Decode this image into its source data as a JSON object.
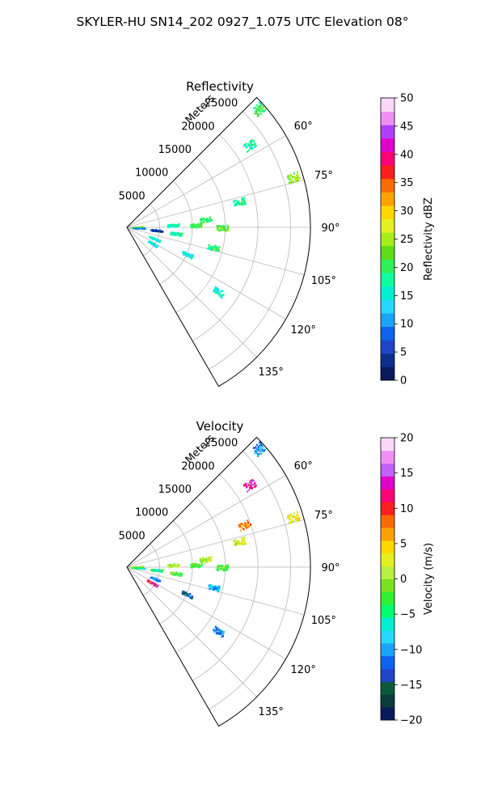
{
  "figure": {
    "title": "SKYLER-HU  SN14_202  0927_1.075 UTC Elevation 08°"
  },
  "chart_data": [
    {
      "type": "heatmap",
      "subtype": "polar-sector-radar",
      "title": "Reflectivity",
      "radial_axis_label": "Meters",
      "radial_ticks": [
        5000,
        10000,
        15000,
        20000,
        25000
      ],
      "radial_tick_labels": [
        "5000",
        "10000",
        "15000",
        "20000",
        "25000"
      ],
      "azimuth_range_deg": [
        45,
        150
      ],
      "azimuth_ticks_deg": [
        60,
        75,
        90,
        105,
        120,
        135
      ],
      "azimuth_tick_labels": [
        "60°",
        "75°",
        "90°",
        "105°",
        "120°",
        "135°"
      ],
      "max_range_m": 28000,
      "grid": true,
      "colorbar": {
        "label": "Reflectivity dBZ",
        "range": [
          0,
          50
        ],
        "ticks": [
          0,
          5,
          10,
          15,
          20,
          25,
          30,
          35,
          40,
          45,
          50
        ],
        "tick_labels": [
          "0",
          "5",
          "10",
          "15",
          "20",
          "25",
          "30",
          "35",
          "40",
          "45",
          "50"
        ],
        "colors": [
          "#0a1a5a",
          "#0d2f8a",
          "#1f44c8",
          "#0b63f0",
          "#1aa3ff",
          "#25d8ff",
          "#00f0d0",
          "#10ffa0",
          "#2ef05a",
          "#5fdc1a",
          "#a8ee18",
          "#e6f020",
          "#ffd800",
          "#ffa200",
          "#ff6a00",
          "#ff1e1e",
          "#ff0077",
          "#e000c8",
          "#b040ff",
          "#f090f5",
          "#fbd8f8"
        ]
      },
      "echoes": [
        {
          "az": 48,
          "r": 27000,
          "value": 20
        },
        {
          "az": 56,
          "r": 22500,
          "value": 17
        },
        {
          "az": 73,
          "r": 26500,
          "value": 24
        },
        {
          "az": 77,
          "r": 17500,
          "value": 18
        },
        {
          "az": 84,
          "r": 12000,
          "value": 20
        },
        {
          "az": 88,
          "r": 10500,
          "value": 21
        },
        {
          "az": 87,
          "r": 7000,
          "value": 17
        },
        {
          "az": 90,
          "r": 14500,
          "value": 22
        },
        {
          "az": 86,
          "r": 1500,
          "value": 23
        },
        {
          "az": 92,
          "r": 1800,
          "value": 10
        },
        {
          "az": 95,
          "r": 4500,
          "value": 5
        },
        {
          "az": 97,
          "r": 7500,
          "value": 18
        },
        {
          "az": 112,
          "r": 4500,
          "value": 16
        },
        {
          "az": 122,
          "r": 4500,
          "value": 14
        },
        {
          "az": 103,
          "r": 13500,
          "value": 19
        },
        {
          "az": 114,
          "r": 10000,
          "value": 15
        },
        {
          "az": 125,
          "r": 17000,
          "value": 16
        }
      ]
    },
    {
      "type": "heatmap",
      "subtype": "polar-sector-radar",
      "title": "Velocity",
      "radial_axis_label": "Meters",
      "radial_ticks": [
        5000,
        10000,
        15000,
        20000,
        25000
      ],
      "radial_tick_labels": [
        "5000",
        "10000",
        "15000",
        "20000",
        "25000"
      ],
      "azimuth_range_deg": [
        45,
        150
      ],
      "azimuth_ticks_deg": [
        60,
        75,
        90,
        105,
        120,
        135
      ],
      "azimuth_tick_labels": [
        "60°",
        "75°",
        "90°",
        "105°",
        "120°",
        "135°"
      ],
      "max_range_m": 28000,
      "grid": true,
      "colorbar": {
        "label": "Velocity (m/s)",
        "range": [
          -20,
          20
        ],
        "ticks": [
          -20,
          -15,
          -10,
          -5,
          0,
          5,
          10,
          15,
          20
        ],
        "tick_labels": [
          "−20",
          "−15",
          "−10",
          "−5",
          "0",
          "5",
          "10",
          "15",
          "20"
        ],
        "colors": [
          "#0a1a5a",
          "#0d3a3a",
          "#0a5a3a",
          "#1f44c8",
          "#0b63f0",
          "#1aa3ff",
          "#25d8ff",
          "#00f0d0",
          "#00ff70",
          "#30f030",
          "#7ae020",
          "#b8f040",
          "#e6f020",
          "#ffd800",
          "#ffa200",
          "#ff6a00",
          "#ff1e1e",
          "#ff0077",
          "#e000c8",
          "#c060ff",
          "#f090f5",
          "#fbd8f8"
        ]
      },
      "echoes": [
        {
          "az": 48,
          "r": 27000,
          "value": -11
        },
        {
          "az": 56,
          "r": 22500,
          "value": 13
        },
        {
          "az": 73,
          "r": 26500,
          "value": 3
        },
        {
          "az": 77,
          "r": 17500,
          "value": 2
        },
        {
          "az": 70,
          "r": 19000,
          "value": 8
        },
        {
          "az": 84,
          "r": 12000,
          "value": 1
        },
        {
          "az": 88,
          "r": 10500,
          "value": -2
        },
        {
          "az": 87,
          "r": 7000,
          "value": 1
        },
        {
          "az": 90,
          "r": 14500,
          "value": -3
        },
        {
          "az": 86,
          "r": 1500,
          "value": 0
        },
        {
          "az": 92,
          "r": 1800,
          "value": -5
        },
        {
          "az": 95,
          "r": 4500,
          "value": -4
        },
        {
          "az": 97,
          "r": 7500,
          "value": -2
        },
        {
          "az": 112,
          "r": 4500,
          "value": -11
        },
        {
          "az": 122,
          "r": 4500,
          "value": 12
        },
        {
          "az": 103,
          "r": 13500,
          "value": -9
        },
        {
          "az": 114,
          "r": 10000,
          "value": -13
        },
        {
          "az": 125,
          "r": 17000,
          "value": -11
        }
      ]
    }
  ]
}
